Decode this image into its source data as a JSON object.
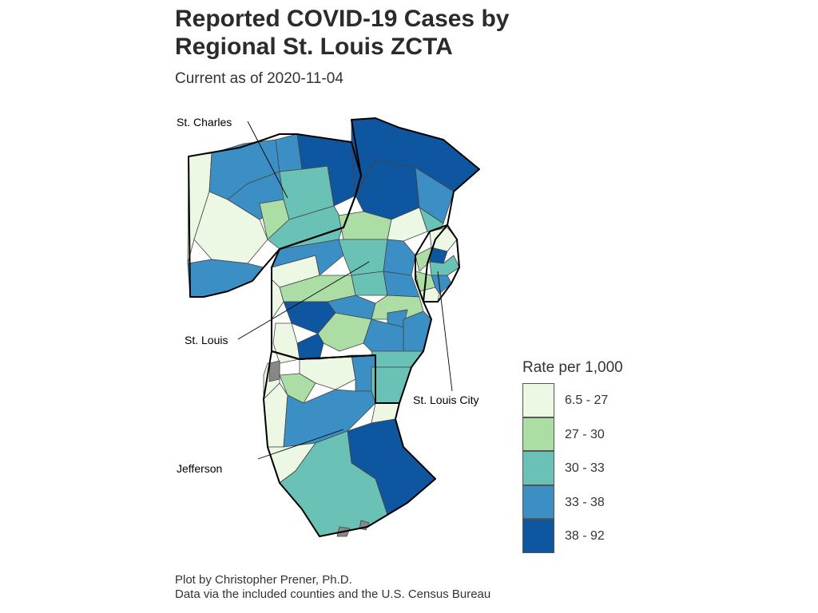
{
  "title": "Reported COVID-19 Cases by Regional St. Louis ZCTA",
  "subtitle": "Current as of 2020-11-04",
  "legend": {
    "title": "Rate per 1,000",
    "items": [
      {
        "label": "6.5 - 27",
        "color": "#edf8e4"
      },
      {
        "label": "27 - 30",
        "color": "#abdda4"
      },
      {
        "label": "30 - 33",
        "color": "#69c2b5"
      },
      {
        "label": "33 - 38",
        "color": "#3b8fc4"
      },
      {
        "label": "38 - 92",
        "color": "#0f56a0"
      }
    ],
    "missing_color": "#888888"
  },
  "map_labels": {
    "st_charles": "St. Charles",
    "st_louis": "St. Louis",
    "st_louis_city": "St. Louis City",
    "jefferson": "Jefferson"
  },
  "caption": {
    "line1": "Plot by Christopher Prener, Ph.D.",
    "line2": "Data via the included counties and the U.S. Census Bureau"
  }
}
